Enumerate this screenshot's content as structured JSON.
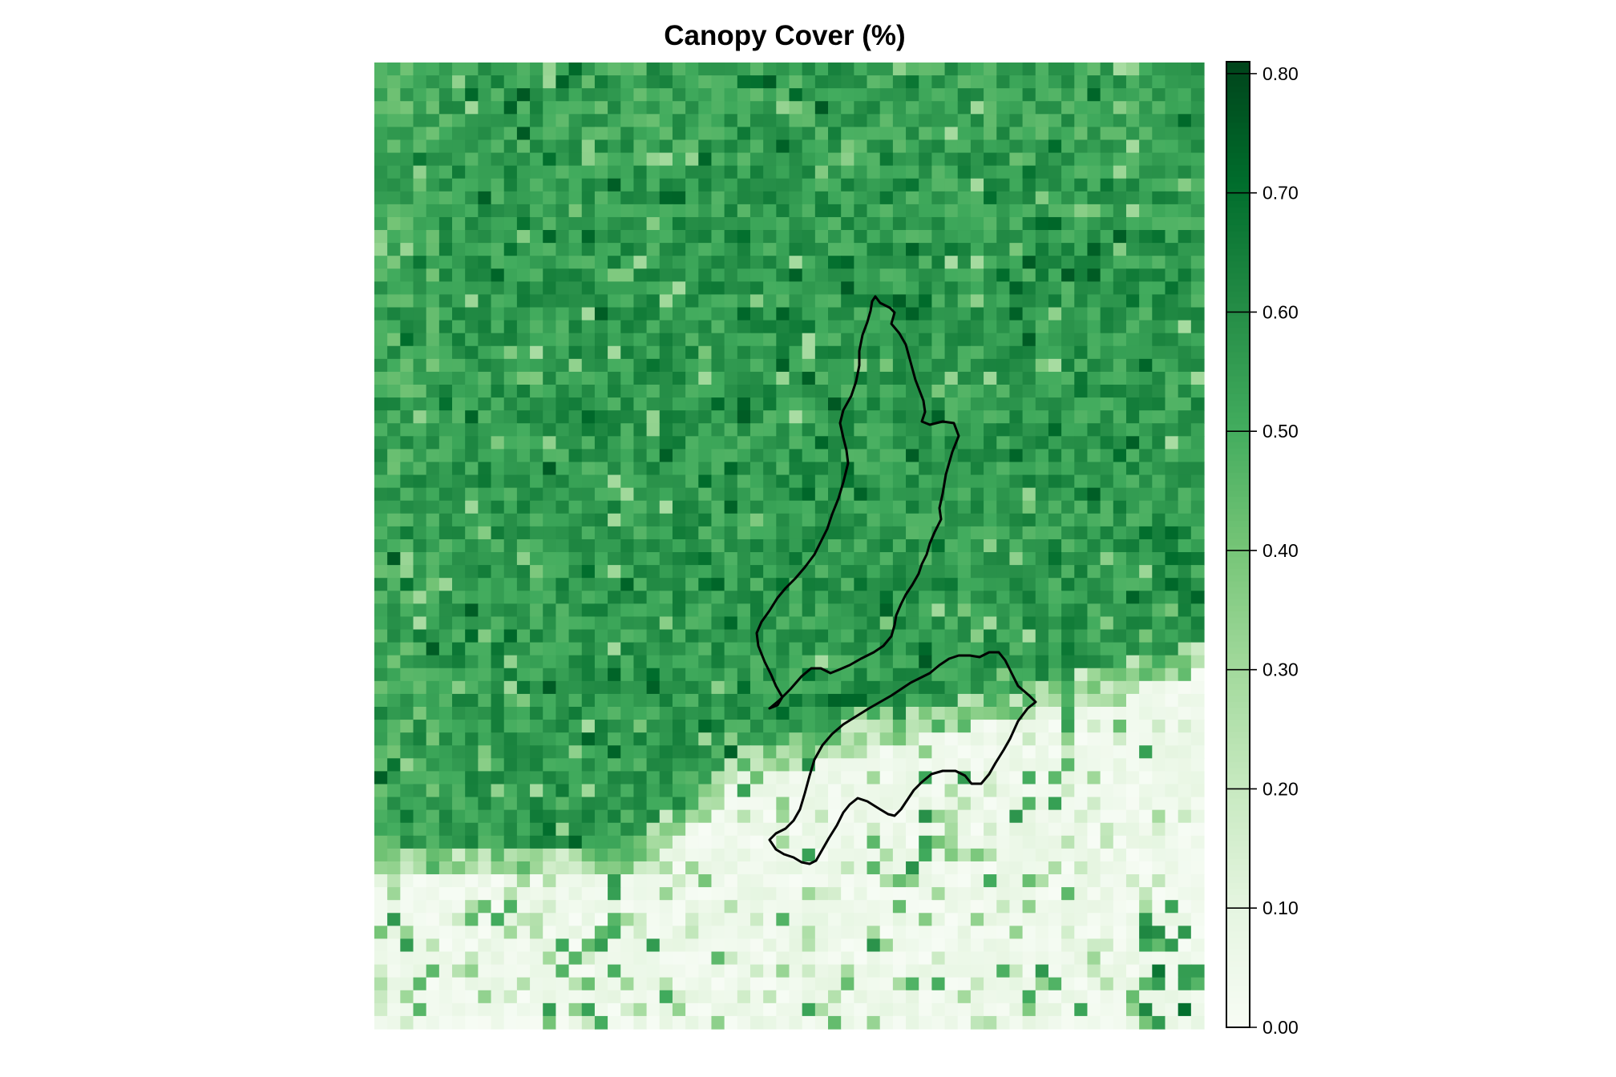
{
  "chart_data": {
    "type": "heatmap",
    "title": "Canopy Cover (%)",
    "xlabel": "",
    "ylabel": "",
    "value_range": [
      0.0,
      0.81
    ],
    "legend": {
      "position": "right",
      "ticks": [
        0.0,
        0.1,
        0.2,
        0.3,
        0.4,
        0.5,
        0.6,
        0.7,
        0.8
      ],
      "tick_labels": [
        "0.00",
        "0.10",
        "0.20",
        "0.30",
        "0.40",
        "0.50",
        "0.60",
        "0.70",
        "0.80"
      ]
    },
    "colormap": [
      "#f7fcf5",
      "#e5f5e0",
      "#c7e9c0",
      "#a1d99b",
      "#74c476",
      "#41ab5d",
      "#238b45",
      "#006d2c",
      "#00441b"
    ],
    "grid": {
      "columns": 64,
      "rows": 75,
      "summary": "Mostly 0.45-0.65 cover across the northern and central area; a sharp drop to 0.00-0.10 in the southern strip below a diagonal boundary, with scattered higher-cover cells to the south-east."
    },
    "overlay": {
      "type": "outline",
      "polygons": 2,
      "color": "#000000"
    }
  }
}
